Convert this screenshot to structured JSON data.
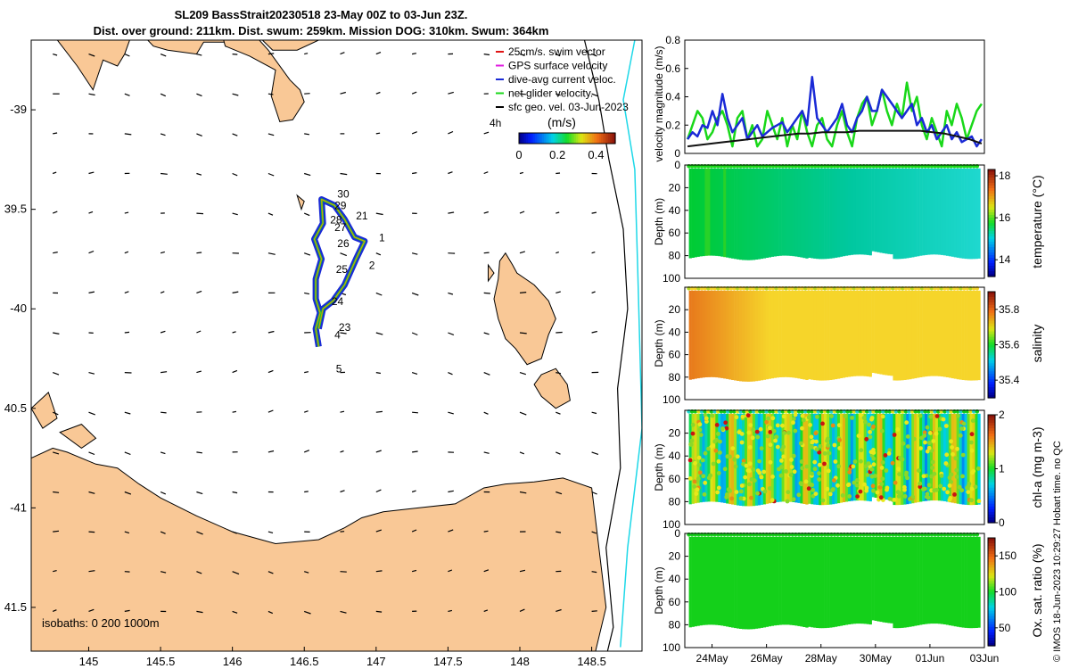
{
  "title": {
    "line1": "SL209 BassStrait20230518 23-May 00Z to 03-Jun 23Z.",
    "line2": "Dist. over ground: 211km. Dist. swum: 259km. Mission DOG: 310km. Swum: 364km"
  },
  "credit": "© IMOS 18-Jun-2023 10:29:27 Hobart time. no QC",
  "colors": {
    "land": "#f9c896",
    "track_blue": "#1a2ad6",
    "green": "#19d819",
    "temp_cmap": [
      "#00cc33",
      "#00c8a0",
      "#1fd8d0"
    ],
    "sal_cmap": [
      "#f6d52a",
      "#e87a1c"
    ],
    "chl_dots": [
      "#e8e81a",
      "#c81414",
      "#e68c14"
    ],
    "ox_fill": "#14d01a"
  },
  "chart_data": [
    {
      "type": "map",
      "name": "glider-track-map",
      "xlim": [
        144.6,
        148.85
      ],
      "ylim": [
        -41.72,
        -38.65
      ],
      "xticks": [
        145,
        145.5,
        146,
        146.5,
        147,
        147.5,
        148,
        148.5
      ],
      "yticks": [
        -39,
        -39.5,
        -40,
        -40.5,
        -41,
        -41.5
      ],
      "xtick_labels": [
        "145",
        "145.5",
        "146",
        "146.5",
        "147",
        "147.5",
        "148",
        "148.5"
      ],
      "ytick_labels": [
        "-39",
        "39.5",
        "-40",
        "40.5",
        "-41",
        "41.5"
      ],
      "legend": {
        "entries": [
          {
            "label": "25cm/s. swim vector",
            "color": "#e01414"
          },
          {
            "label": "GPS surface velocity",
            "color": "#e01ae0"
          },
          {
            "label": "dive-avg current veloc.",
            "color": "#1a2ad6"
          },
          {
            "label": "net glider velocity.",
            "color": "#19d819"
          },
          {
            "label": "sfc geo. vel. 03-Jun-2023",
            "color": "#000000"
          }
        ],
        "cbar_label": "(m/s)",
        "cbar_prefix": "4h",
        "cbar_ticks": [
          0,
          0.2,
          0.4
        ],
        "cbar_tick_labels": [
          "0",
          "0.2",
          "0.4"
        ],
        "cbar_range": [
          0,
          0.5
        ]
      },
      "isobaths_label": "isobaths: 0   200  1000m",
      "track": [
        [
          146.6,
          -40.19
        ],
        [
          146.58,
          -40.1
        ],
        [
          146.61,
          -40.02
        ],
        [
          146.58,
          -39.95
        ],
        [
          146.58,
          -39.85
        ],
        [
          146.62,
          -39.75
        ],
        [
          146.57,
          -39.65
        ],
        [
          146.63,
          -39.57
        ],
        [
          146.62,
          -39.45
        ],
        [
          146.71,
          -39.48
        ],
        [
          146.78,
          -39.55
        ],
        [
          146.85,
          -39.64
        ],
        [
          146.92,
          -39.66
        ],
        [
          146.86,
          -39.75
        ],
        [
          146.78,
          -39.88
        ],
        [
          146.7,
          -39.96
        ],
        [
          146.63,
          -40.0
        ],
        [
          146.6,
          -40.1
        ]
      ],
      "day_labels": [
        {
          "t": "30",
          "lon": 146.73,
          "lat": -39.44
        },
        {
          "t": "29",
          "lon": 146.71,
          "lat": -39.5
        },
        {
          "t": "21",
          "lon": 146.86,
          "lat": -39.55
        },
        {
          "t": "28",
          "lon": 146.68,
          "lat": -39.57
        },
        {
          "t": "27",
          "lon": 146.71,
          "lat": -39.61
        },
        {
          "t": "1",
          "lon": 147.02,
          "lat": -39.66
        },
        {
          "t": "26",
          "lon": 146.73,
          "lat": -39.69
        },
        {
          "t": "2",
          "lon": 146.95,
          "lat": -39.8
        },
        {
          "t": "25",
          "lon": 146.72,
          "lat": -39.82
        },
        {
          "t": "24",
          "lon": 146.69,
          "lat": -39.98
        },
        {
          "t": "23",
          "lon": 146.74,
          "lat": -40.11
        },
        {
          "t": "4",
          "lon": 146.71,
          "lat": -40.15
        },
        {
          "t": "5",
          "lon": 146.72,
          "lat": -40.32
        }
      ]
    },
    {
      "type": "line",
      "name": "velocity-magnitude",
      "ylabel": "velocity magnitude (m/s)",
      "ylim": [
        0,
        0.8
      ],
      "yticks": [
        0,
        0.2,
        0.4,
        0.6,
        0.8
      ],
      "ytick_labels": [
        "0",
        "0.2",
        "0.4",
        "0.6",
        "0.8"
      ],
      "xlim": [
        23.0,
        34.0
      ],
      "series": [
        {
          "name": "net glider velocity",
          "color": "#19d819",
          "values": [
            0.1,
            0.2,
            0.3,
            0.25,
            0.1,
            0.15,
            0.25,
            0.3,
            0.2,
            0.05,
            0.25,
            0.3,
            0.1,
            0.2,
            0.05,
            0.1,
            0.3,
            0.2,
            0.1,
            0.25,
            0.05,
            0.2,
            0.1,
            0.3,
            0.15,
            0.05,
            0.2,
            0.25,
            0.1,
            0.05,
            0.2,
            0.3,
            0.15,
            0.05,
            0.25,
            0.35,
            0.4,
            0.2,
            0.3,
            0.45,
            0.3,
            0.2,
            0.35,
            0.25,
            0.5,
            0.3,
            0.4,
            0.2,
            0.1,
            0.25,
            0.15,
            0.05,
            0.3,
            0.2,
            0.35,
            0.25,
            0.1,
            0.2,
            0.3,
            0.35
          ]
        },
        {
          "name": "dive-avg current",
          "color": "#1a2ad6",
          "values": [
            0.1,
            0.15,
            0.12,
            0.2,
            0.18,
            0.3,
            0.2,
            0.42,
            0.25,
            0.15,
            0.2,
            0.25,
            0.1,
            0.15,
            0.2,
            0.12,
            0.15,
            0.18,
            0.2,
            0.22,
            0.15,
            0.2,
            0.25,
            0.3,
            0.2,
            0.54,
            0.25,
            0.2,
            0.15,
            0.2,
            0.25,
            0.35,
            0.2,
            0.15,
            0.25,
            0.3,
            0.4,
            0.3,
            0.3,
            0.45,
            0.4,
            0.35,
            0.3,
            0.25,
            0.3,
            0.35,
            0.2,
            0.25,
            0.15,
            0.2,
            0.1,
            0.15,
            0.2,
            0.1,
            0.15,
            0.08,
            0.1,
            0.12,
            0.05,
            0.1
          ]
        },
        {
          "name": "sfc geo. vel.",
          "color": "#111111",
          "values": [
            0.05,
            0.06,
            0.07,
            0.08,
            0.09,
            0.1,
            0.11,
            0.12,
            0.13,
            0.14,
            0.14,
            0.15,
            0.15,
            0.15,
            0.16,
            0.16,
            0.16,
            0.16,
            0.16,
            0.16,
            0.15,
            0.14,
            0.12,
            0.1,
            0.07
          ]
        }
      ]
    },
    {
      "type": "heatmap",
      "name": "temperature-section",
      "ylabel": "Depth (m)",
      "yticks": [
        0,
        20,
        40,
        60,
        80,
        100
      ],
      "ytick_labels": [
        "0",
        "20",
        "40",
        "60",
        "80",
        "100"
      ],
      "cbar_label": "temperature (°C)",
      "cbar_ticks": [
        14,
        16,
        18
      ],
      "cbar_tick_labels": [
        "14",
        "16",
        "18"
      ],
      "cbar_range": [
        13.2,
        18.3
      ]
    },
    {
      "type": "heatmap",
      "name": "salinity-section",
      "ylabel": "Depth (m)",
      "yticks": [
        20,
        40,
        60,
        80,
        100
      ],
      "ytick_labels": [
        "20",
        "40",
        "60",
        "80",
        "100"
      ],
      "cbar_label": "salinity",
      "cbar_ticks": [
        35.4,
        35.6,
        35.8
      ],
      "cbar_tick_labels": [
        "35.4",
        "35.6",
        "35.8"
      ],
      "cbar_range": [
        35.3,
        35.9
      ]
    },
    {
      "type": "scatter",
      "name": "chl-a-section",
      "ylabel": "Depth (m)",
      "yticks": [
        20,
        40,
        60,
        80,
        100
      ],
      "ytick_labels": [
        "20",
        "40",
        "60",
        "80",
        "100"
      ],
      "cbar_label": "chl-a (mg m-3)",
      "cbar_ticks": [
        0,
        1,
        2
      ],
      "cbar_tick_labels": [
        "0",
        "1",
        "2"
      ],
      "cbar_range": [
        0,
        2
      ]
    },
    {
      "type": "heatmap",
      "name": "oxygen-section",
      "ylabel": "Depth (m)",
      "yticks": [
        0,
        20,
        40,
        60,
        80,
        100
      ],
      "ytick_labels": [
        "0",
        "20",
        "40",
        "60",
        "80",
        "100"
      ],
      "cbar_label": "Ox. sat. ratio (%)",
      "cbar_ticks": [
        50,
        100,
        150
      ],
      "cbar_tick_labels": [
        "50",
        "100",
        "150"
      ],
      "cbar_range": [
        25,
        175
      ],
      "xticks": [
        24,
        26,
        28,
        30,
        32,
        34
      ],
      "xtick_labels": [
        "24May",
        "26May",
        "28May",
        "30May",
        "01Jun",
        "03Jun"
      ]
    }
  ]
}
